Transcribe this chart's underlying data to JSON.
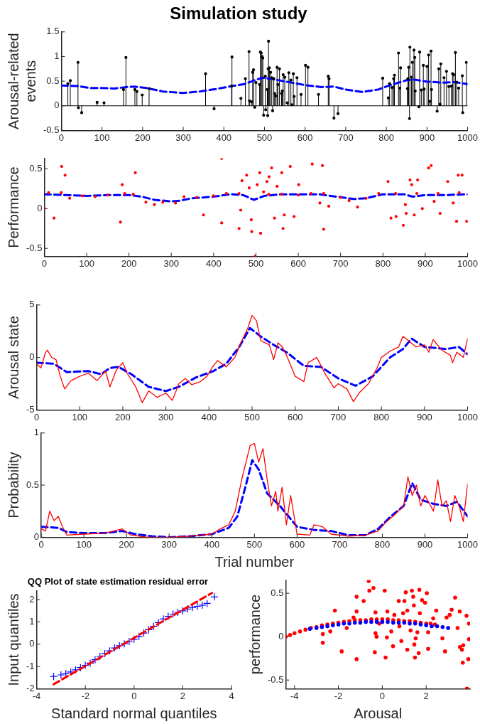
{
  "chart_data": [
    {
      "type": "lollipop",
      "title": "Simulation study",
      "ylabel": "Arousal-related events",
      "xlim": [
        0,
        1000
      ],
      "xticks": [
        0,
        100,
        200,
        300,
        400,
        500,
        600,
        700,
        800,
        900,
        1000
      ],
      "ylim": [
        -0.5,
        1.5
      ],
      "yticks": [
        -0.5,
        0,
        0.5,
        1,
        1.5
      ],
      "grid": false,
      "legend": false,
      "ref_lines": [
        {
          "axis": "y",
          "value": 0,
          "color": "#000000"
        }
      ],
      "series": [
        {
          "color": "#000000",
          "marker": "circle",
          "x": [
            16,
            22,
            41,
            42,
            50,
            88,
            105,
            153,
            159,
            181,
            186,
            199,
            216,
            355,
            376,
            419,
            420,
            442,
            453,
            462,
            463,
            468,
            471,
            473,
            476,
            479,
            488,
            490,
            492,
            494,
            496,
            498,
            502,
            503,
            507,
            508,
            509,
            510,
            512,
            515,
            518,
            520,
            523,
            525,
            528,
            531,
            533,
            537,
            542,
            544,
            546,
            550,
            556,
            560,
            565,
            567,
            571,
            573,
            580,
            590,
            601,
            607,
            633,
            657,
            659,
            671,
            681,
            791,
            805,
            808,
            814,
            818,
            820,
            830,
            833,
            835,
            852,
            853,
            855,
            857,
            858,
            862,
            864,
            868,
            870,
            871,
            880,
            882,
            886,
            891,
            893,
            900,
            904,
            907,
            910,
            911,
            925,
            929,
            932,
            934,
            942,
            948,
            954,
            960,
            963,
            966,
            970,
            973,
            978,
            987,
            988,
            997
          ],
          "values": [
            0.45,
            0.51,
            0.88,
            -0.04,
            -0.14,
            0.07,
            0.06,
            0.33,
            0.98,
            0.33,
            0.29,
            0.22,
            0.35,
            0.65,
            -0.06,
            0.4,
            0.99,
            0.15,
            0.55,
            1.1,
            0.1,
            0.08,
            0.68,
            0.73,
            -0.03,
            0.47,
            0.43,
            1.09,
            1.07,
            1.0,
            0.97,
            -0.19,
            0.6,
            -0.08,
            0.33,
            -0.2,
            0.75,
            1.31,
            0.77,
            0.68,
            0.57,
            -0.1,
            0.55,
            0.25,
            0.2,
            0.78,
            0.43,
            0.75,
            0.25,
            0.3,
            0.63,
            0.58,
            0.06,
            0.67,
            0.52,
            0.02,
            0.65,
            0.19,
            0.57,
            0.23,
            0.82,
            0.78,
            0.23,
            0.6,
            0.55,
            -0.25,
            -0.16,
            0.56,
            0.16,
            0.45,
            0.37,
            0.55,
            0.62,
            1.07,
            0.36,
            0.77,
            0.35,
            0.55,
            0.78,
            -0.26,
            1.19,
            0.58,
            0.88,
            1.13,
            0.98,
            0.3,
            -0.02,
            1.09,
            0.32,
            0.82,
            0.34,
            0.8,
            1.03,
            0.09,
            1.11,
            0.33,
            -0.11,
            0.75,
            0.03,
            0.85,
            0.57,
            0.7,
            0.39,
            0.4,
            0.65,
            0.63,
            1.08,
            0.48,
            0.36,
            0.61,
            -0.14,
            0.88
          ]
        },
        {
          "type": "line",
          "color": "#0000ff",
          "line_style": "dashed",
          "marker": "none",
          "x": [
            0,
            40,
            70,
            100,
            130,
            160,
            180,
            210,
            250,
            300,
            340,
            380,
            420,
            450,
            470,
            495,
            520,
            560,
            600,
            640,
            670,
            700,
            740,
            780,
            810,
            850,
            870,
            900,
            940,
            970,
            1000
          ],
          "values": [
            0.41,
            0.4,
            0.36,
            0.36,
            0.35,
            0.38,
            0.39,
            0.36,
            0.29,
            0.26,
            0.29,
            0.34,
            0.4,
            0.44,
            0.5,
            0.57,
            0.54,
            0.48,
            0.42,
            0.38,
            0.39,
            0.33,
            0.28,
            0.33,
            0.42,
            0.52,
            0.53,
            0.49,
            0.47,
            0.48,
            0.44
          ]
        }
      ]
    },
    {
      "type": "scatter",
      "ylabel": "Performance",
      "xlim": [
        0,
        1000
      ],
      "xticks": [
        0,
        100,
        200,
        300,
        400,
        500,
        600,
        700,
        800,
        900,
        1000
      ],
      "ylim": [
        -0.6,
        0.63
      ],
      "yticks": [
        -0.5,
        0,
        0.5
      ],
      "grid": false,
      "legend": false,
      "series": [
        {
          "color": "#ff0000",
          "marker": "circle",
          "x": [
            0,
            10,
            40,
            60,
            90,
            120,
            150,
            190,
            210,
            240,
            260,
            280,
            310,
            330,
            360,
            400,
            430,
            460,
            530,
            560,
            600,
            630,
            660,
            700,
            720,
            740,
            760,
            790,
            830,
            880,
            930,
            980,
            41,
            49,
            23,
            215,
            184,
            180,
            376,
            419,
            419,
            460,
            464,
            467,
            478,
            484,
            489,
            490,
            498,
            503,
            509,
            511,
            518,
            526,
            531,
            537,
            544,
            550,
            561,
            564,
            567,
            581,
            590,
            601,
            633,
            651,
            657,
            660,
            672,
            812,
            819,
            831,
            848,
            853,
            855,
            864,
            868,
            874,
            882,
            893,
            908,
            914,
            921,
            935,
            953,
            966,
            974,
            978,
            987,
            998
          ],
          "values": [
            0,
            0.2,
            0.2,
            0.13,
            0.16,
            0.15,
            0.17,
            0.19,
            0.18,
            0.08,
            0.05,
            0.08,
            0.07,
            0.15,
            0.14,
            0.16,
            0.19,
            0.19,
            0.18,
            0.18,
            0.17,
            0.19,
            0.19,
            0.14,
            0.1,
            0.02,
            0.13,
            0.19,
            0.19,
            0.19,
            0.19,
            0.2,
            0.53,
            0.42,
            -0.12,
            0.45,
            0.3,
            -0.17,
            -0.08,
            0.63,
            -0.18,
            -0.25,
            -0.02,
            0.35,
            0.42,
            0.26,
            -0.14,
            -0.29,
            -0.6,
            0.3,
            0.45,
            -0.31,
            0.21,
            0.34,
            0.4,
            0.51,
            -0.12,
            0.28,
            0.45,
            -0.25,
            -0.08,
            0.53,
            -0.1,
            0.3,
            0.56,
            0.07,
            0.54,
            -0.26,
            0.03,
            0.34,
            -0.12,
            -0.1,
            -0.21,
            0.05,
            -0.06,
            0.36,
            0.3,
            -0.08,
            0.36,
            0,
            0.51,
            0.54,
            0.09,
            -0.06,
            0.34,
            0.07,
            -0.16,
            0.42,
            0.42,
            -0.16
          ]
        },
        {
          "type": "line",
          "color": "#0000ff",
          "line_style": "dashed",
          "marker": "none",
          "x": [
            0,
            50,
            100,
            150,
            200,
            230,
            260,
            300,
            320,
            350,
            400,
            440,
            470,
            495,
            520,
            560,
            600,
            650,
            690,
            730,
            760,
            800,
            850,
            870,
            900,
            950,
            1000
          ],
          "values": [
            0.18,
            0.17,
            0.16,
            0.17,
            0.17,
            0.15,
            0.11,
            0.09,
            0.1,
            0.13,
            0.15,
            0.18,
            0.17,
            0.11,
            0.16,
            0.18,
            0.18,
            0.18,
            0.15,
            0.12,
            0.13,
            0.18,
            0.18,
            0.15,
            0.17,
            0.17,
            0.18
          ]
        }
      ]
    },
    {
      "type": "line",
      "ylabel": "Arousal state",
      "xlim": [
        0,
        1000
      ],
      "xticks": [
        0,
        100,
        200,
        300,
        400,
        500,
        600,
        700,
        800,
        900,
        1000
      ],
      "ylim": [
        -5,
        5
      ],
      "yticks": [
        -5,
        0,
        5
      ],
      "grid": false,
      "legend": false,
      "series": [
        {
          "color": "#ff0000",
          "line_style": "solid",
          "marker": "none",
          "x": [
            0,
            10,
            20,
            25,
            35,
            45,
            55,
            65,
            80,
            100,
            120,
            140,
            160,
            170,
            185,
            200,
            210,
            230,
            245,
            260,
            280,
            300,
            315,
            330,
            345,
            360,
            380,
            395,
            410,
            420,
            440,
            460,
            475,
            490,
            500,
            510,
            520,
            540,
            550,
            560,
            570,
            580,
            600,
            620,
            630,
            650,
            660,
            670,
            690,
            700,
            720,
            735,
            750,
            770,
            790,
            800,
            820,
            840,
            850,
            860,
            880,
            900,
            910,
            920,
            940,
            960,
            965,
            975,
            990,
            1000
          ],
          "values": [
            -0.6,
            -1.0,
            0.4,
            0.7,
            0,
            -0.2,
            -1.8,
            -3.0,
            -2.2,
            -1.8,
            -1.5,
            -2.2,
            -1.3,
            -2.8,
            -1.2,
            -0.5,
            -1.5,
            -2.8,
            -4.3,
            -3.2,
            -3.8,
            -3.4,
            -4.1,
            -2.5,
            -2.0,
            -2.6,
            -2.3,
            -1.8,
            -0.8,
            -0.3,
            -0.9,
            0,
            1.5,
            2.8,
            4.0,
            3.5,
            1.6,
            1.2,
            -0.2,
            1.4,
            1.0,
            0.2,
            -1.8,
            -2.3,
            -0.5,
            0,
            -0.8,
            -1.6,
            -2.9,
            -2.5,
            -3.0,
            -4.2,
            -3.3,
            -2.5,
            -1.0,
            0,
            0.6,
            1.0,
            2.0,
            1.7,
            1.0,
            1.2,
            0.5,
            1.7,
            0.7,
            0.2,
            -0.5,
            0.5,
            0,
            1.8
          ]
        },
        {
          "color": "#0000ff",
          "line_style": "dashed",
          "marker": "none",
          "x": [
            0,
            40,
            70,
            120,
            150,
            170,
            190,
            220,
            260,
            300,
            330,
            370,
            410,
            440,
            470,
            495,
            520,
            550,
            580,
            620,
            660,
            700,
            740,
            780,
            820,
            850,
            870,
            900,
            950,
            980,
            1000
          ],
          "values": [
            -0.5,
            -0.6,
            -1.4,
            -1.3,
            -1.6,
            -1.0,
            -0.9,
            -1.6,
            -2.8,
            -3.2,
            -2.8,
            -1.9,
            -1.3,
            -0.6,
            1.0,
            2.8,
            2.0,
            1.2,
            0.5,
            -0.8,
            -0.9,
            -2.0,
            -2.7,
            -1.8,
            0,
            0.8,
            1.8,
            1.0,
            0.8,
            1.0,
            0.3
          ]
        }
      ]
    },
    {
      "type": "line",
      "ylabel": "Probability",
      "xlabel": "Trial number",
      "xlim": [
        0,
        1000
      ],
      "xticks": [
        0,
        100,
        200,
        300,
        400,
        500,
        600,
        700,
        800,
        900,
        1000
      ],
      "ylim": [
        0,
        1
      ],
      "yticks": [
        0,
        0.5,
        1
      ],
      "grid": false,
      "legend": false,
      "series": [
        {
          "color": "#ff0000",
          "line_style": "solid",
          "marker": "none",
          "x": [
            0,
            10,
            20,
            30,
            40,
            50,
            60,
            100,
            150,
            190,
            210,
            250,
            300,
            350,
            400,
            420,
            440,
            455,
            470,
            490,
            500,
            510,
            520,
            530,
            540,
            550,
            555,
            565,
            575,
            585,
            600,
            630,
            640,
            660,
            680,
            720,
            760,
            790,
            810,
            830,
            850,
            860,
            870,
            880,
            890,
            900,
            920,
            930,
            940,
            950,
            960,
            970,
            980,
            990,
            1000
          ],
          "values": [
            0.08,
            0.06,
            0.25,
            0.16,
            0.2,
            0.1,
            0.02,
            0.03,
            0.04,
            0.08,
            0.02,
            0,
            0,
            0.01,
            0.03,
            0.08,
            0.12,
            0.25,
            0.55,
            0.88,
            0.9,
            0.72,
            0.85,
            0.55,
            0.3,
            0.44,
            0.25,
            0.48,
            0.12,
            0.4,
            0.03,
            0.02,
            0.12,
            0.1,
            0.03,
            0.01,
            0.02,
            0.06,
            0.15,
            0.22,
            0.3,
            0.58,
            0.4,
            0.5,
            0.3,
            0.4,
            0.25,
            0.55,
            0.3,
            0.35,
            0.15,
            0.4,
            0.3,
            0.15,
            0.51
          ]
        },
        {
          "color": "#0000ff",
          "line_style": "dashed",
          "marker": "none",
          "x": [
            0,
            40,
            60,
            100,
            150,
            190,
            220,
            260,
            300,
            350,
            400,
            440,
            460,
            480,
            495,
            510,
            530,
            560,
            600,
            640,
            680,
            720,
            760,
            790,
            820,
            850,
            870,
            890,
            920,
            950,
            975,
            1000
          ],
          "values": [
            0.1,
            0.09,
            0.05,
            0.04,
            0.04,
            0.06,
            0.03,
            0.01,
            0,
            0.01,
            0.03,
            0.09,
            0.2,
            0.5,
            0.74,
            0.65,
            0.42,
            0.3,
            0.1,
            0.07,
            0.06,
            0.02,
            0.02,
            0.08,
            0.2,
            0.3,
            0.52,
            0.36,
            0.32,
            0.3,
            0.34,
            0.2
          ]
        }
      ]
    },
    {
      "type": "scatter",
      "title": "QQ Plot of state estimation residual error",
      "xlabel": "Standard normal quantiles",
      "ylabel": "Input quantiles",
      "xlim": [
        -4,
        4
      ],
      "xticks": [
        -4,
        -2,
        0,
        2,
        4
      ],
      "ylim": [
        -2,
        2.4
      ],
      "yticks": [
        -2,
        -1,
        0,
        1,
        2
      ],
      "grid": false,
      "legend": false,
      "series": [
        {
          "type": "line",
          "color": "#ff0000",
          "line_style": "dashed",
          "marker": "none",
          "x": [
            -3.3,
            3.2
          ],
          "values": [
            -1.8,
            2.3
          ]
        },
        {
          "color": "#0000ff",
          "marker": "cross",
          "x": [
            -3.3,
            -3.0,
            -2.8,
            -2.6,
            -2.4,
            -2.2,
            -2.0,
            -1.8,
            -1.6,
            -1.4,
            -1.2,
            -1.0,
            -0.8,
            -0.6,
            -0.4,
            -0.2,
            0,
            0.2,
            0.4,
            0.6,
            0.8,
            1.0,
            1.2,
            1.4,
            1.6,
            1.8,
            2.0,
            2.2,
            2.4,
            2.6,
            2.8,
            3.0,
            3.3
          ],
          "values": [
            -1.45,
            -1.38,
            -1.32,
            -1.25,
            -1.15,
            -1.05,
            -0.95,
            -0.85,
            -0.7,
            -0.55,
            -0.42,
            -0.3,
            -0.17,
            -0.07,
            0.02,
            0.12,
            0.22,
            0.35,
            0.5,
            0.65,
            0.8,
            0.97,
            1.13,
            1.25,
            1.35,
            1.43,
            1.5,
            1.58,
            1.65,
            1.7,
            1.75,
            1.83,
            2.12
          ]
        }
      ]
    },
    {
      "type": "scatter",
      "xlabel": "Arousal",
      "ylabel": "performance",
      "xlim": [
        -4.4,
        4
      ],
      "xticks": [
        -4,
        -2,
        0,
        2
      ],
      "ylim": [
        -0.6,
        0.65
      ],
      "yticks": [
        -0.5,
        0,
        0.5
      ],
      "grid": false,
      "legend": false,
      "series": [
        {
          "color": "#0000ff",
          "marker": "circle",
          "x": [
            -3.3,
            -3.0,
            -2.75,
            -2.5,
            -2.25,
            -2.0,
            -1.75,
            -1.5,
            -1.25,
            -1.0,
            -0.75,
            -0.5,
            -0.25,
            0,
            0.25,
            0.5,
            0.75,
            1.0,
            1.25,
            1.5,
            1.75,
            2.0,
            2.25,
            2.5,
            2.75,
            3.0
          ],
          "values": [
            0.09,
            0.1,
            0.11,
            0.12,
            0.13,
            0.14,
            0.15,
            0.15,
            0.16,
            0.16,
            0.17,
            0.17,
            0.17,
            0.17,
            0.17,
            0.16,
            0.16,
            0.16,
            0.15,
            0.15,
            0.14,
            0.13,
            0.12,
            0.12,
            0.11,
            0.1
          ]
        },
        {
          "color": "#ff0000",
          "marker": "circle",
          "x": [
            -4.4,
            -4.2,
            -4,
            -3.75,
            -3.5,
            -3.25,
            -3,
            -2.75,
            -2.5,
            -2.25,
            -2,
            -1.75,
            -1.5,
            -1.25,
            -1,
            -0.75,
            -0.5,
            -0.25,
            0,
            0.25,
            0.5,
            0.75,
            1,
            1.25,
            1.5,
            1.75,
            2,
            2.2,
            2.4,
            -2.71,
            -2.71,
            -2.37,
            -2.16,
            -1.85,
            -1.62,
            -1.31,
            -1.17,
            -1.17,
            -1.17,
            -0.85,
            -0.62,
            -0.59,
            -0.4,
            -0.31,
            -0.31,
            -0.26,
            -0.34,
            -0.14,
            0.11,
            0.15,
            0.21,
            0.23,
            0.41,
            0.49,
            0.55,
            0.75,
            0.78,
            0.87,
            0.95,
            1.01,
            1.07,
            1.14,
            1.14,
            1.29,
            1.35,
            1.41,
            1.44,
            1.46,
            1.49,
            1.52,
            1.6,
            1.66,
            1.69,
            1.71,
            1.81,
            1.95,
            2.03,
            2.09,
            2.09,
            2.32,
            2.46,
            2.74,
            2.86,
            2.93,
            3.07,
            3.16,
            3.32,
            3.43,
            3.53,
            3.54,
            3.63,
            3.67,
            3.69,
            3.84,
            3.86,
            3.92,
            3.95,
            3.95
          ],
          "values": [
            0,
            0.02,
            0.04,
            0.06,
            0.08,
            0.1,
            0.11,
            0.13,
            0.14,
            0.15,
            0.16,
            0.17,
            0.18,
            0.19,
            0.19,
            0.19,
            0.2,
            0.2,
            0.2,
            0.2,
            0.19,
            0.19,
            0.18,
            0.18,
            0.17,
            0.16,
            0.15,
            0.15,
            0.14,
            0.03,
            -0.07,
            0.06,
            0.3,
            -0.17,
            0.1,
            0.22,
            0.46,
            0.29,
            -0.26,
            0.41,
            0.64,
            0.53,
            0.56,
            0.28,
            0.04,
            0,
            -0.18,
            0.15,
            0.53,
            -0.24,
            -0.01,
            0.29,
            0.06,
            -0.11,
            0.25,
            0.41,
            0.12,
            -0.05,
            0.27,
            0.41,
            0.51,
            0.3,
            -0.15,
            0.07,
            0.53,
            0.46,
            0.36,
            -0.09,
            -0.24,
            -0.02,
            0.05,
            -0.19,
            0.54,
            0.27,
            0.42,
            0.39,
            0.5,
            -0.14,
            0.05,
            0.21,
            0.3,
            -0.02,
            -0.17,
            0.22,
            0.25,
            0.31,
            0.45,
            0.1,
            0.29,
            -0.12,
            -0.15,
            -0.3,
            -0.1,
            0.24,
            -0.6,
            -0.26,
            0.15,
            -0.03
          ]
        }
      ]
    }
  ]
}
